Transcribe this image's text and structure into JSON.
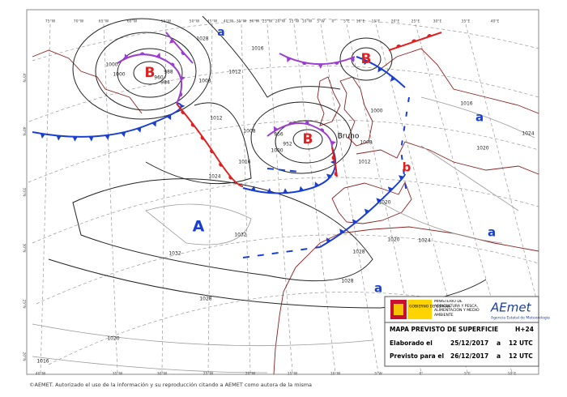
{
  "map": {
    "pressure_centers": [
      "B",
      "B",
      "B",
      "A",
      "a",
      "a",
      "a",
      "a",
      "b"
    ],
    "storm_name": "Bruno",
    "isobar_labels": [
      "1000",
      "960",
      "984",
      "988",
      "1008",
      "1012",
      "1012",
      "1016",
      "1016",
      "1008",
      "1000",
      "952",
      "956",
      "1000",
      "1008",
      "1012",
      "1016",
      "1024",
      "1020",
      "1020",
      "1024",
      "1020",
      "1024",
      "1032",
      "1032",
      "1028",
      "1028",
      "1028",
      "1020",
      "1016",
      "1028",
      "1000"
    ],
    "top_labels": [
      "75°W",
      "70°W",
      "65°W",
      "60°W",
      "55°W",
      "50°W",
      "45°W",
      "40°W",
      "35°W",
      "30°W",
      "25°W",
      "20°W",
      "15°W",
      "10°W",
      "5°W",
      "0°",
      "5°E",
      "10°E",
      "15°E",
      "20°E",
      "25°E",
      "30°E",
      "35°E",
      "40°E"
    ],
    "bottom_labels": [
      "40°W",
      "35°W",
      "30°W",
      "25°W",
      "20°W",
      "15°W",
      "10°W",
      "5°W",
      "0°",
      "5°E",
      "10°E"
    ],
    "left_labels": [
      "45°N",
      "40°N",
      "35°N",
      "30°N",
      "25°N",
      "20°N"
    ]
  },
  "legend": {
    "government": "GOBIERNO DE ESPAÑA",
    "ministry": "MINISTERIO DE AGRICULTURA Y PESCA, ALIMENTACIÓN Y MEDIO AMBIENTE",
    "agency": "AEmet",
    "agency_full": "Agencia Estatal de Meteorología",
    "title": "MAPA PREVISTO DE SUPERFICIE",
    "lead": "H+24",
    "rows": [
      [
        "Elaborado el",
        "25/12/2017",
        "a",
        "12 UTC"
      ],
      [
        "Previsto para el",
        "26/12/2017",
        "a",
        "12 UTC"
      ]
    ]
  },
  "footer": "©AEMET. Autorizado el uso de la información y su reproducción citando a AEMET como autora de la misma"
}
